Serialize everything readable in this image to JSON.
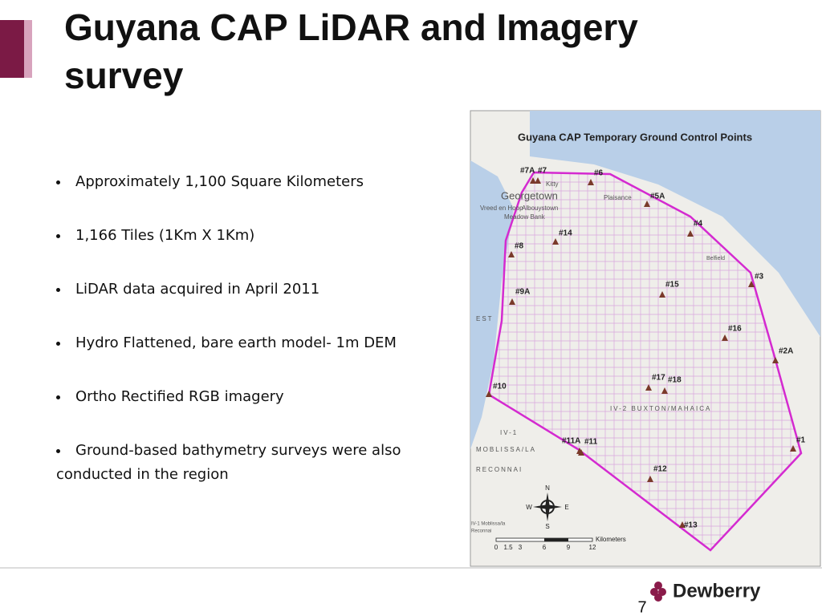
{
  "header": {
    "title": "Guyana CAP LiDAR and Imagery survey"
  },
  "bullets": [
    "Approximately 1,100 Square Kilometers",
    "1,166 Tiles (1Km X 1Km)",
    "LiDAR data acquired in April 2011",
    "Hydro Flattened, bare earth model- 1m DEM",
    "Ortho Rectified RGB imagery",
    "Ground-based bathymetry surveys were also conducted in the region"
  ],
  "map": {
    "title": "Guyana CAP Temporary Ground Control Points",
    "points": [
      "#7A",
      "#7",
      "#6",
      "#5A",
      "#4",
      "#14",
      "#8",
      "#3",
      "#15",
      "#9A",
      "#16",
      "#2A",
      "#17",
      "#18",
      "#10",
      "#11A",
      "#11",
      "#1",
      "#12",
      "#13"
    ],
    "places": [
      "Georgetown",
      "Kitty",
      "Plaisance",
      "Vreed en Hoop",
      "Albouystown",
      "Meadow Bank",
      "Belfield",
      "EST",
      "IV-2 BUXTON/MAHAICA",
      "IV-1",
      "MOBLISSA/LA",
      "RECONNAI",
      "IV-1 Moblissa/la",
      "Reconnai"
    ],
    "compass": [
      "N",
      "E",
      "S",
      "W"
    ],
    "scale": {
      "unit": "Kilometers",
      "ticks": [
        "0",
        "1.5",
        "3",
        "6",
        "9",
        "12"
      ]
    }
  },
  "footer": {
    "logo": "Dewberry",
    "page": "7"
  }
}
